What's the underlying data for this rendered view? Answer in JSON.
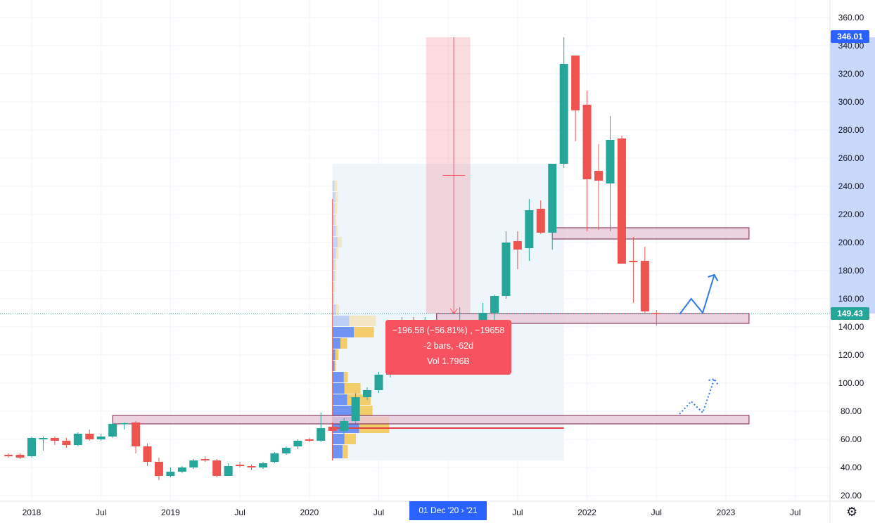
{
  "chart_data": {
    "type": "candlestick",
    "interval": "monthly",
    "colors": {
      "up": "#26a69a",
      "down": "#ef5350",
      "accent": "#2962ff",
      "measure": "#f7525f",
      "zone_fill": "#e9c8d8",
      "zone_border": "#7a1f48"
    },
    "y_axis": {
      "ticks": [
        20,
        40,
        60,
        80,
        100,
        120,
        140,
        160,
        180,
        200,
        220,
        240,
        260,
        280,
        300,
        320,
        340,
        360
      ],
      "tick_labels": [
        "20.00",
        "40.00",
        "60.00",
        "80.00",
        "100.00",
        "120.00",
        "140.00",
        "160.00",
        "180.00",
        "200.00",
        "220.00",
        "240.00",
        "260.00",
        "280.00",
        "300.00",
        "320.00",
        "340.00",
        "360.00"
      ],
      "range": [
        14,
        372
      ]
    },
    "x_axis": {
      "labels": [
        {
          "date": "2018-01",
          "text": "2018"
        },
        {
          "date": "2018-07",
          "text": "Jul"
        },
        {
          "date": "2019-01",
          "text": "2019"
        },
        {
          "date": "2019-07",
          "text": "Jul"
        },
        {
          "date": "2020-01",
          "text": "2020"
        },
        {
          "date": "2020-07",
          "text": "Jul"
        },
        {
          "date": "2021-07",
          "text": "Jul"
        },
        {
          "date": "2022-01",
          "text": "2022"
        },
        {
          "date": "2022-07",
          "text": "Jul"
        },
        {
          "date": "2023-01",
          "text": "2023"
        },
        {
          "date": "2023-07",
          "text": "Jul"
        }
      ],
      "highlight_label": "01 Dec '20  › '21"
    },
    "grid": true,
    "last_price": "149.43",
    "high_marker": "346.01",
    "candles": [
      [
        "2017-11",
        49,
        50,
        47,
        48
      ],
      [
        "2017-12",
        49,
        50,
        46,
        47
      ],
      [
        "2018-01",
        48,
        62,
        47,
        61
      ],
      [
        "2018-02",
        60,
        62,
        52,
        61
      ],
      [
        "2018-03",
        61,
        62,
        56,
        59
      ],
      [
        "2018-04",
        59,
        61,
        54,
        56
      ],
      [
        "2018-05",
        56,
        65,
        55,
        64
      ],
      [
        "2018-06",
        64,
        67,
        59,
        60
      ],
      [
        "2018-07",
        60,
        64,
        59,
        62
      ],
      [
        "2018-08",
        62,
        72,
        61,
        71
      ],
      [
        "2018-09",
        71,
        72,
        67,
        71.5
      ],
      [
        "2018-10",
        72,
        73,
        50,
        55
      ],
      [
        "2018-11",
        55,
        57,
        41,
        44
      ],
      [
        "2018-12",
        44,
        47,
        31,
        34
      ],
      [
        "2019-01",
        34,
        40,
        33,
        37
      ],
      [
        "2019-02",
        37,
        41,
        36,
        40
      ],
      [
        "2019-03",
        40,
        46,
        39,
        45
      ],
      [
        "2019-04",
        46,
        48,
        44,
        45
      ],
      [
        "2019-05",
        45,
        46,
        33,
        34
      ],
      [
        "2019-06",
        34,
        43,
        34,
        41
      ],
      [
        "2019-07",
        42,
        44,
        40,
        41
      ],
      [
        "2019-08",
        41,
        42,
        38,
        40
      ],
      [
        "2019-09",
        40,
        44,
        39,
        43
      ],
      [
        "2019-10",
        44,
        51,
        43,
        50
      ],
      [
        "2019-11",
        50,
        55,
        49,
        54
      ],
      [
        "2019-12",
        55,
        60,
        53,
        59
      ],
      [
        "2020-01",
        60,
        61,
        58,
        59
      ],
      [
        "2020-02",
        59,
        79,
        58,
        68
      ],
      [
        "2020-03",
        69,
        72,
        45,
        66
      ],
      [
        "2020-04",
        66,
        75,
        64,
        73
      ],
      [
        "2020-05",
        73,
        93,
        71,
        90
      ],
      [
        "2020-06",
        90,
        97,
        88,
        95
      ],
      [
        "2020-07",
        95,
        108,
        93,
        106
      ],
      [
        "2020-08",
        106,
        134,
        104,
        133
      ],
      [
        "2020-09",
        133,
        147,
        117,
        135
      ],
      [
        "2020-10",
        135,
        147,
        122,
        125
      ],
      [
        "2020-11",
        125,
        147,
        121,
        134
      ],
      [
        "2020-12",
        134,
        137,
        127,
        130
      ],
      [
        "2021-01",
        130,
        137,
        126,
        130
      ],
      [
        "2021-02",
        131,
        154,
        129,
        137
      ],
      [
        "2021-03",
        137,
        140,
        115,
        133
      ],
      [
        "2021-04",
        134,
        157,
        131,
        150
      ],
      [
        "2021-05",
        150,
        163,
        139,
        162
      ],
      [
        "2021-06",
        162,
        208,
        160,
        200
      ],
      [
        "2021-07",
        201,
        208,
        181,
        195
      ],
      [
        "2021-08",
        196,
        231,
        187,
        223
      ],
      [
        "2021-09",
        224,
        230,
        206,
        207
      ],
      [
        "2021-10",
        207,
        256,
        195,
        256
      ],
      [
        "2021-11",
        256,
        346.01,
        253,
        327
      ],
      [
        "2021-12",
        333,
        333,
        272,
        294
      ],
      [
        "2022-01",
        298,
        308,
        208,
        245
      ],
      [
        "2022-02",
        251,
        270,
        209,
        244
      ],
      [
        "2022-03",
        242,
        290,
        208,
        273
      ],
      [
        "2022-04",
        274,
        276,
        185,
        185
      ],
      [
        "2022-05",
        187,
        204,
        157,
        186
      ],
      [
        "2022-06",
        187,
        197,
        150,
        151
      ],
      [
        "2022-07",
        150,
        152,
        141,
        149.43
      ]
    ],
    "annotations": {
      "zones": [
        {
          "from": "2018-08",
          "to": "2023-03",
          "top": 77,
          "bottom": 71
        },
        {
          "from": "2020-12",
          "to": "2023-03",
          "top": 149.5,
          "bottom": 142.5
        },
        {
          "from": "2021-10",
          "to": "2023-03",
          "top": 210.5,
          "bottom": 202.5
        }
      ],
      "measure": {
        "from": "2020-12",
        "to": "2021-02",
        "top": 346.01,
        "bottom": 149.43,
        "lines": [
          "−196.58 (−56.81%) , −19658",
          "-2 bars, -62d",
          "Vol 1.796B"
        ]
      },
      "volume_profile": {
        "from": "2020-03",
        "to": "2021-11",
        "top": 256,
        "bottom": 45,
        "poc": 68,
        "rows": [
          [
            236,
            244,
            3,
            4
          ],
          [
            228,
            236,
            4,
            4
          ],
          [
            220,
            228,
            3,
            4
          ],
          [
            212,
            220,
            3,
            3
          ],
          [
            204,
            212,
            5,
            3
          ],
          [
            196,
            204,
            8,
            6
          ],
          [
            188,
            196,
            5,
            4
          ],
          [
            180,
            188,
            3,
            3
          ],
          [
            172,
            180,
            3,
            2
          ],
          [
            164,
            172,
            2,
            2
          ],
          [
            156,
            164,
            2,
            1
          ],
          [
            148,
            156,
            5,
            5
          ],
          [
            140,
            148,
            25,
            40
          ],
          [
            132,
            140,
            32,
            30
          ],
          [
            124,
            132,
            12,
            10
          ],
          [
            116,
            124,
            4,
            5
          ],
          [
            108,
            116,
            3,
            2
          ],
          [
            100,
            108,
            17,
            6
          ],
          [
            92,
            100,
            18,
            24
          ],
          [
            84,
            92,
            22,
            35
          ],
          [
            76,
            84,
            35,
            25
          ],
          [
            64,
            76,
            40,
            45
          ],
          [
            56,
            64,
            18,
            17
          ],
          [
            46,
            56,
            15,
            8
          ]
        ]
      },
      "projection_solid": [
        [
          "2022-09",
          149
        ],
        [
          "2022-10",
          160
        ],
        [
          "2022-11",
          150
        ],
        [
          "2022-12",
          177
        ]
      ],
      "projection_dotted": [
        [
          "2022-09",
          78
        ],
        [
          "2022-10",
          87
        ],
        [
          "2022-11",
          79
        ],
        [
          "2022-12",
          103
        ]
      ]
    }
  }
}
